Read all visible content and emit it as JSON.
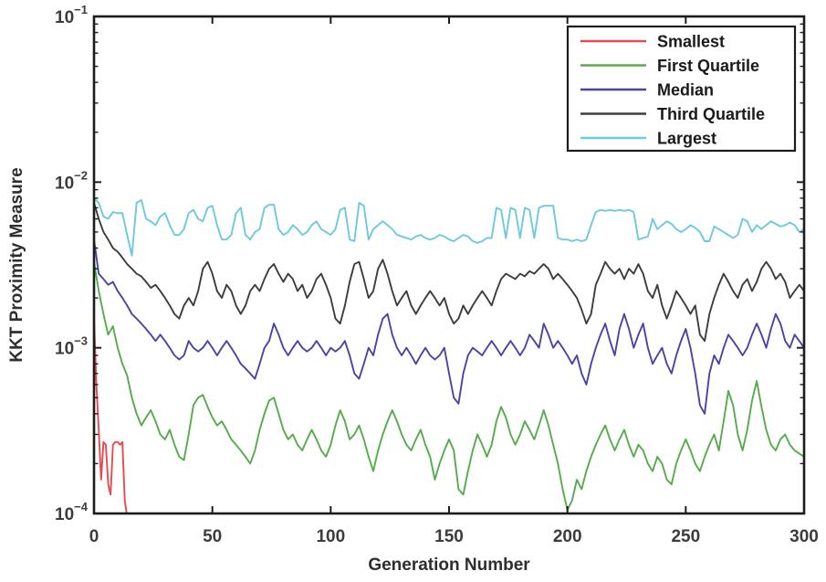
{
  "chart_data": {
    "type": "line",
    "title": "",
    "xlabel": "Generation Number",
    "ylabel": "KKT Proximity Measure",
    "grid": false,
    "x_axis": {
      "min": 0,
      "max": 300,
      "ticks": [
        0,
        50,
        100,
        150,
        200,
        250,
        300
      ]
    },
    "y_axis": {
      "scale": "log10",
      "min": 0.0001,
      "max": 0.1,
      "tick_exponents": [
        -1,
        -2,
        -3,
        -4
      ],
      "minor_ticks": true
    },
    "legend": {
      "position": "top-right",
      "entries": [
        "Smallest",
        "First Quartile",
        "Median",
        "Third Quartile",
        "Largest"
      ]
    },
    "value_unit": 0.0001,
    "series": [
      {
        "name": "Largest",
        "color": "#6cc9e0",
        "x_start": 0,
        "x_step": 2,
        "values": [
          80,
          75,
          62,
          60,
          66,
          65,
          65,
          48,
          36,
          75,
          78,
          60,
          58,
          55,
          62,
          65,
          55,
          48,
          48,
          52,
          65,
          68,
          60,
          58,
          70,
          72,
          55,
          45,
          45,
          48,
          65,
          70,
          48,
          45,
          50,
          52,
          70,
          73,
          73,
          52,
          48,
          50,
          55,
          52,
          48,
          50,
          55,
          58,
          52,
          50,
          48,
          52,
          68,
          70,
          45,
          44,
          75,
          72,
          45,
          52,
          55,
          58,
          55,
          52,
          48,
          47,
          46,
          45,
          47,
          48,
          46,
          45,
          46,
          48,
          47,
          45,
          44,
          46,
          48,
          47,
          44,
          43,
          44,
          46,
          46,
          70,
          68,
          46,
          70,
          68,
          46,
          70,
          68,
          46,
          70,
          72,
          72,
          72,
          46,
          45,
          45,
          44,
          45,
          44,
          45,
          55,
          66,
          68,
          67,
          68,
          67,
          68,
          67,
          68,
          66,
          45,
          46,
          47,
          60,
          52,
          55,
          58,
          56,
          52,
          50,
          52,
          55,
          53,
          50,
          44,
          44,
          54,
          52,
          50,
          48,
          46,
          48,
          60,
          58,
          50,
          55,
          52,
          55,
          58,
          56,
          54,
          55,
          57,
          55,
          50,
          52
        ]
      },
      {
        "name": "Third Quartile",
        "color": "#3d3d3d",
        "x_start": 0,
        "x_step": 2,
        "values": [
          75,
          60,
          50,
          45,
          40,
          38,
          35,
          32,
          30,
          28,
          27,
          25,
          23,
          24,
          22,
          20,
          18,
          16,
          15,
          18,
          20,
          18,
          22,
          30,
          33,
          28,
          22,
          20,
          24,
          22,
          18,
          16,
          18,
          22,
          24,
          22,
          26,
          30,
          32,
          28,
          25,
          28,
          26,
          22,
          24,
          20,
          22,
          26,
          28,
          24,
          20,
          15,
          14,
          18,
          25,
          32,
          33,
          26,
          20,
          22,
          30,
          34,
          28,
          22,
          18,
          20,
          22,
          18,
          16,
          18,
          20,
          22,
          20,
          18,
          20,
          16,
          14,
          15,
          18,
          16,
          18,
          20,
          22,
          20,
          18,
          22,
          26,
          28,
          27,
          26,
          28,
          27,
          29,
          28,
          30,
          32,
          30,
          26,
          28,
          26,
          24,
          22,
          20,
          17,
          14,
          16,
          24,
          28,
          33,
          30,
          28,
          30,
          26,
          30,
          28,
          32,
          28,
          22,
          20,
          24,
          18,
          15,
          18,
          22,
          20,
          18,
          16,
          18,
          12,
          11,
          16,
          20,
          24,
          28,
          25,
          22,
          20,
          24,
          26,
          22,
          25,
          30,
          33,
          30,
          26,
          28,
          25,
          20,
          22,
          24,
          22
        ]
      },
      {
        "name": "Median",
        "color": "#4a43a6",
        "x_start": 0,
        "x_step": 2,
        "values": [
          45,
          28,
          26,
          24,
          25,
          22,
          20,
          18,
          16,
          15,
          14,
          13,
          12,
          11,
          12,
          11,
          10,
          9,
          8.5,
          9,
          11,
          10,
          9.5,
          10,
          11,
          10,
          9,
          10,
          11,
          10,
          9,
          8,
          7.5,
          7,
          6.5,
          8,
          10,
          11,
          14,
          12,
          10,
          9,
          10,
          11,
          10,
          9.5,
          10,
          11,
          10,
          9,
          10,
          9.5,
          10,
          11,
          9,
          7,
          6.5,
          8,
          10,
          9,
          12,
          15,
          16,
          12,
          10,
          9,
          10,
          9,
          8,
          9,
          10,
          9,
          8.5,
          9,
          10,
          7,
          5,
          4.6,
          7,
          9,
          10,
          9.5,
          9,
          10,
          11,
          10,
          9,
          10,
          11,
          10,
          9,
          10,
          12,
          11,
          10,
          14,
          12,
          10,
          11,
          10,
          9,
          8,
          9,
          7,
          6,
          8,
          10,
          12,
          14,
          11,
          9,
          13,
          16,
          13,
          10,
          12,
          14,
          10,
          8,
          9,
          10,
          8,
          7,
          9,
          11,
          13,
          10,
          7,
          4.5,
          4,
          7,
          9,
          8,
          10,
          12,
          11,
          10,
          9,
          10,
          12,
          14,
          12,
          10,
          13,
          16,
          14,
          11,
          10,
          12,
          11,
          10
        ]
      },
      {
        "name": "First Quartile",
        "color": "#56ab4c",
        "x_start": 0,
        "x_step": 2,
        "values": [
          33,
          22,
          16,
          12,
          13.5,
          10,
          8,
          6.8,
          5,
          4,
          3.4,
          3.8,
          4.2,
          3.6,
          3.0,
          2.8,
          3.2,
          2.6,
          2.2,
          2.1,
          3.0,
          4.5,
          5.0,
          5.2,
          4.4,
          3.8,
          3.4,
          3.6,
          3.2,
          2.8,
          2.6,
          2.4,
          2.2,
          2.0,
          2.4,
          3.2,
          4.0,
          4.8,
          5.0,
          4.0,
          3.2,
          2.8,
          3.0,
          2.6,
          2.4,
          2.8,
          3.2,
          2.8,
          2.4,
          2.2,
          2.6,
          3.4,
          4.2,
          3.6,
          2.8,
          3.0,
          3.4,
          2.8,
          2.2,
          1.8,
          2.4,
          3.0,
          3.6,
          4.2,
          3.6,
          3.0,
          2.6,
          2.4,
          2.8,
          3.2,
          2.6,
          2.2,
          1.6,
          2.0,
          2.4,
          2.8,
          2.4,
          1.4,
          1.3,
          1.8,
          2.4,
          3.0,
          2.6,
          2.2,
          2.6,
          3.6,
          4.4,
          3.8,
          3.0,
          2.6,
          3.0,
          3.6,
          3.2,
          2.8,
          3.4,
          4.2,
          3.4,
          2.6,
          2.0,
          1.4,
          1.05,
          1.2,
          1.6,
          1.4,
          1.8,
          2.2,
          2.6,
          3.0,
          3.4,
          2.8,
          2.4,
          2.8,
          3.2,
          2.6,
          2.2,
          2.6,
          2.4,
          2.0,
          1.8,
          2.2,
          2.0,
          1.6,
          1.5,
          2.0,
          2.4,
          2.8,
          2.4,
          2.0,
          1.8,
          2.2,
          2.6,
          3.0,
          2.4,
          3.6,
          5.5,
          4.5,
          3.0,
          2.4,
          3.2,
          4.8,
          6.3,
          4.4,
          3.2,
          2.6,
          2.4,
          2.8,
          3.0,
          2.6,
          2.4,
          2.3,
          2.2
        ]
      },
      {
        "name": "Smallest",
        "color": "#e8494e",
        "x_start": 0,
        "x_step": 1,
        "values": [
          15,
          6,
          3.2,
          1.6,
          2.7,
          2.6,
          1.5,
          1.3,
          2.6,
          2.7,
          2.7,
          2.6,
          2.7,
          1.2,
          0.95,
          0.55
        ]
      }
    ]
  }
}
